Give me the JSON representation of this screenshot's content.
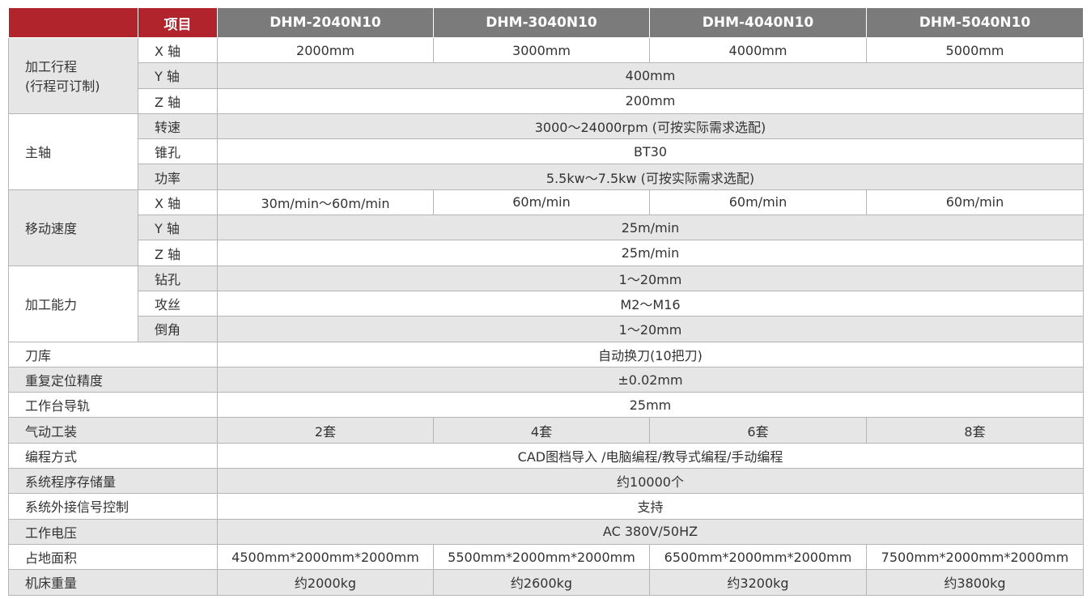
{
  "header": {
    "item_label": "项目",
    "models": [
      "DHM-2040N10",
      "DHM-3040N10",
      "DHM-4040N10",
      "DHM-5040N10"
    ]
  },
  "groups": {
    "travel": {
      "label_line1": "加工行程",
      "label_line2": "(行程可订制)",
      "x": "X 轴",
      "y": "Y 轴",
      "z": "Z 轴",
      "x_values": [
        "2000mm",
        "3000mm",
        "4000mm",
        "5000mm"
      ],
      "y_value": "400mm",
      "z_value": "200mm"
    },
    "spindle": {
      "label": "主轴",
      "speed": "转速",
      "taper": "锥孔",
      "power": "功率",
      "speed_value": "3000～24000rpm (可按实际需求选配)",
      "taper_value": "BT30",
      "power_value": "5.5kw～7.5kw (可按实际需求选配)"
    },
    "move": {
      "label": "移动速度",
      "x": "X 轴",
      "y": "Y 轴",
      "z": "Z 轴",
      "x_values": [
        "30m/min～60m/min",
        "60m/min",
        "60m/min",
        "60m/min"
      ],
      "y_value": "25m/min",
      "z_value": "25m/min"
    },
    "ability": {
      "label": "加工能力",
      "drill": "钻孔",
      "tap": "攻丝",
      "chamfer": "倒角",
      "drill_value": "1～20mm",
      "tap_value": "M2～M16",
      "chamfer_value": "1～20mm"
    }
  },
  "rows": {
    "tool_magazine": {
      "label": "刀库",
      "value": "自动换刀(10把刀)"
    },
    "repeat_precision": {
      "label": "重复定位精度",
      "value": "±0.02mm"
    },
    "guide_rail": {
      "label": "工作台导轨",
      "value": "25mm"
    },
    "pneumatic": {
      "label": "气动工装",
      "values": [
        "2套",
        "4套",
        "6套",
        "8套"
      ]
    },
    "programming": {
      "label": "编程方式",
      "value": "CAD图档导入 /电脑编程/教导式编程/手动编程"
    },
    "storage": {
      "label": "系统程序存储量",
      "value": "约10000个"
    },
    "external_signal": {
      "label": "系统外接信号控制",
      "value": "支持"
    },
    "voltage": {
      "label": "工作电压",
      "value": "AC 380V/50HZ"
    },
    "footprint": {
      "label": "占地面积",
      "values": [
        "4500mm*2000mm*2000mm",
        "5500mm*2000mm*2000mm",
        "6500mm*2000mm*2000mm",
        "7500mm*2000mm*2000mm"
      ]
    },
    "weight": {
      "label": "机床重量",
      "values": [
        "约2000kg",
        "约2600kg",
        "约3200kg",
        "约3800kg"
      ]
    }
  },
  "colors": {
    "header_red": "#b1242b",
    "header_gray": "#7b7b7c",
    "row_gray": "#e6e6e6"
  }
}
